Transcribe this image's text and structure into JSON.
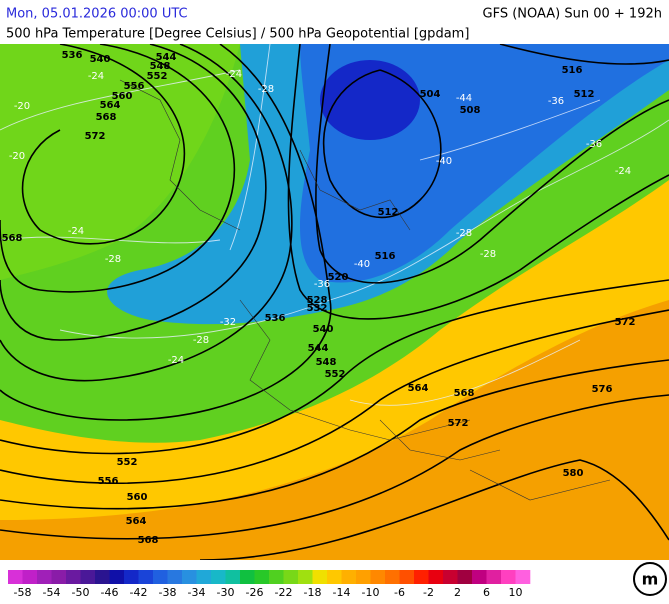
{
  "header": {
    "left": "Mon, 05.01.2026 00:00 UTC",
    "right": "GFS (NOAA) Sun 00 + 192h",
    "subtitle": "500 hPa Temperature [Degree Celsius] / 500 hPa Geopotential [gpdam]"
  },
  "map": {
    "geopotential_labels": [
      "536",
      "540",
      "544",
      "548",
      "552",
      "556",
      "560",
      "564",
      "568",
      "572",
      "516",
      "512",
      "508",
      "504",
      "512",
      "516",
      "520",
      "528",
      "532",
      "536",
      "540",
      "544",
      "548",
      "552",
      "564",
      "568",
      "572",
      "576",
      "572",
      "580",
      "568",
      "552",
      "556",
      "560",
      "564",
      "568"
    ],
    "temperature_labels": [
      "-24",
      "-24",
      "-28",
      "-44",
      "-36",
      "-36",
      "-40",
      "-24",
      "-28",
      "-28",
      "-40",
      "-36",
      "-32",
      "-28",
      "-24",
      "-24",
      "-28",
      "-20",
      "-20"
    ]
  },
  "legend": {
    "lim": [
      -60,
      12
    ],
    "colors": [
      "#d830d8",
      "#c020c8",
      "#a020b8",
      "#8a1ca8",
      "#6a1aa0",
      "#4a1898",
      "#2a1490",
      "#1010a8",
      "#1428c8",
      "#1a44d8",
      "#2060e0",
      "#2878e0",
      "#2890e0",
      "#20a8d8",
      "#18b8c8",
      "#10c0a0",
      "#10c040",
      "#28c828",
      "#50d020",
      "#78d818",
      "#a0e010",
      "#f0e000",
      "#ffc800",
      "#ffb000",
      "#ffa000",
      "#ff8800",
      "#ff7000",
      "#ff5000",
      "#ff2000",
      "#e80010",
      "#c80030",
      "#a00040",
      "#c00080",
      "#e020a0",
      "#ff40c0",
      "#ff60e0"
    ],
    "ticks": [
      -58,
      -54,
      -50,
      -46,
      -42,
      -38,
      -34,
      -30,
      -26,
      -22,
      -18,
      -14,
      -10,
      -6,
      -2,
      2,
      6,
      10
    ]
  }
}
